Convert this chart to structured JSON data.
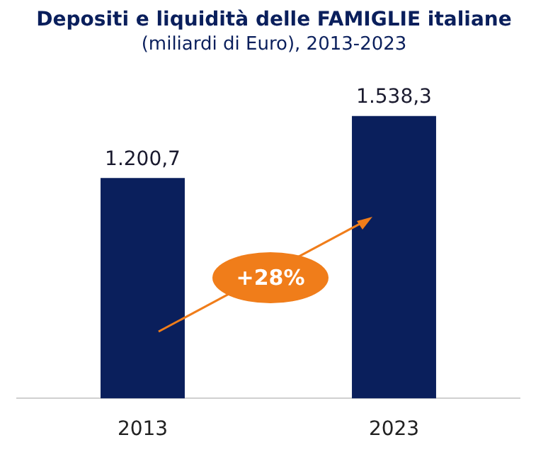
{
  "chart_data": {
    "type": "bar",
    "title": "Depositi e liquidità delle FAMIGLIE italiane",
    "subtitle": "(miliardi di Euro), 2013-2023",
    "categories": [
      "2013",
      "2023"
    ],
    "values": [
      1200.7,
      1538.3
    ],
    "value_labels": [
      "1.200,7",
      "1.538,3"
    ],
    "color": "#0a1f5c",
    "annotations": [
      "+28%"
    ],
    "grid": false,
    "legend": false
  }
}
